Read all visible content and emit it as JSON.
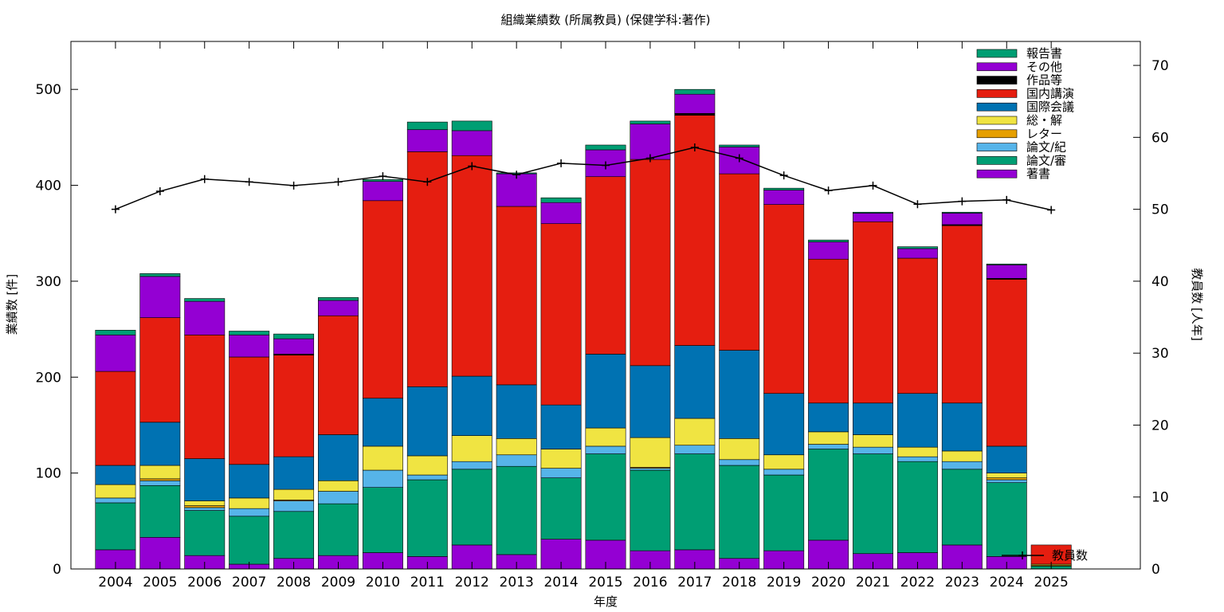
{
  "chart_data": {
    "type": "bar",
    "stacked": true,
    "title": "組織業績数 (所属教員) (保健学科:著作)",
    "xlabel": "年度",
    "ylabel": "業績数 [件]",
    "y2label": "教員数 [人年]",
    "ylim": [
      0,
      550
    ],
    "y2lim": [
      0,
      73.33
    ],
    "yticks": [
      0,
      100,
      200,
      300,
      400,
      500
    ],
    "y2ticks": [
      0,
      10,
      20,
      30,
      40,
      50,
      60,
      70
    ],
    "grid": false,
    "legend_position": "top-right",
    "categories": [
      "2004",
      "2005",
      "2006",
      "2007",
      "2008",
      "2009",
      "2010",
      "2011",
      "2012",
      "2013",
      "2014",
      "2015",
      "2016",
      "2017",
      "2018",
      "2019",
      "2020",
      "2021",
      "2022",
      "2023",
      "2024",
      "2025"
    ],
    "series": [
      {
        "name": "著書",
        "color": "#9400d3",
        "values": [
          20,
          33,
          14,
          5,
          11,
          14,
          17,
          13,
          25,
          15,
          31,
          30,
          19,
          20,
          11,
          19,
          30,
          16,
          17,
          25,
          13,
          0
        ]
      },
      {
        "name": "論文/審",
        "color": "#009e73",
        "values": [
          49,
          54,
          47,
          50,
          49,
          54,
          68,
          80,
          79,
          92,
          64,
          90,
          84,
          100,
          97,
          79,
          95,
          104,
          95,
          79,
          77,
          3
        ]
      },
      {
        "name": "論文/紀",
        "color": "#56b4e9",
        "values": [
          5,
          5,
          3,
          8,
          11,
          13,
          18,
          5,
          8,
          12,
          10,
          8,
          2,
          9,
          6,
          6,
          5,
          7,
          5,
          8,
          3,
          0
        ]
      },
      {
        "name": "レター",
        "color": "#e69f00",
        "values": [
          0,
          2,
          2,
          0,
          1,
          0,
          0,
          0,
          0,
          0,
          0,
          0,
          1,
          0,
          0,
          0,
          0,
          0,
          0,
          0,
          2,
          1
        ]
      },
      {
        "name": "総・解",
        "color": "#f0e442",
        "values": [
          14,
          14,
          5,
          11,
          11,
          11,
          25,
          20,
          27,
          17,
          20,
          19,
          31,
          28,
          22,
          15,
          13,
          13,
          10,
          11,
          5,
          1
        ]
      },
      {
        "name": "国際会議",
        "color": "#0072b2",
        "values": [
          20,
          45,
          44,
          35,
          34,
          48,
          50,
          72,
          62,
          56,
          46,
          77,
          75,
          76,
          92,
          64,
          30,
          33,
          56,
          50,
          28,
          0
        ]
      },
      {
        "name": "国内講演",
        "color": "#e51e10",
        "values": [
          98,
          109,
          129,
          112,
          106,
          124,
          206,
          245,
          230,
          186,
          189,
          185,
          215,
          240,
          184,
          197,
          150,
          189,
          141,
          185,
          174,
          20
        ]
      },
      {
        "name": "作品等",
        "color": "#000000",
        "values": [
          0,
          0,
          0,
          0,
          1,
          0,
          0,
          0,
          0,
          0,
          0,
          0,
          0,
          2,
          0,
          0,
          0,
          0,
          0,
          1,
          1,
          0
        ]
      },
      {
        "name": "その他",
        "color": "#9400d3",
        "values": [
          38,
          43,
          35,
          23,
          16,
          16,
          20,
          23,
          26,
          34,
          22,
          28,
          37,
          20,
          28,
          15,
          18,
          9,
          10,
          12,
          14,
          0
        ]
      },
      {
        "name": "報告書",
        "color": "#009e73",
        "values": [
          5,
          3,
          3,
          4,
          5,
          3,
          2,
          8,
          10,
          1,
          5,
          5,
          3,
          5,
          2,
          2,
          2,
          1,
          2,
          1,
          1,
          0
        ]
      }
    ],
    "line_series": {
      "name": "教員数",
      "axis": "right",
      "color": "#000000",
      "values": [
        50.0,
        52.5,
        54.2,
        53.8,
        53.3,
        53.8,
        54.6,
        53.8,
        56.0,
        54.8,
        56.4,
        56.1,
        57.1,
        58.6,
        57.1,
        54.7,
        52.6,
        53.3,
        50.7,
        51.1,
        51.3,
        49.9
      ]
    }
  }
}
